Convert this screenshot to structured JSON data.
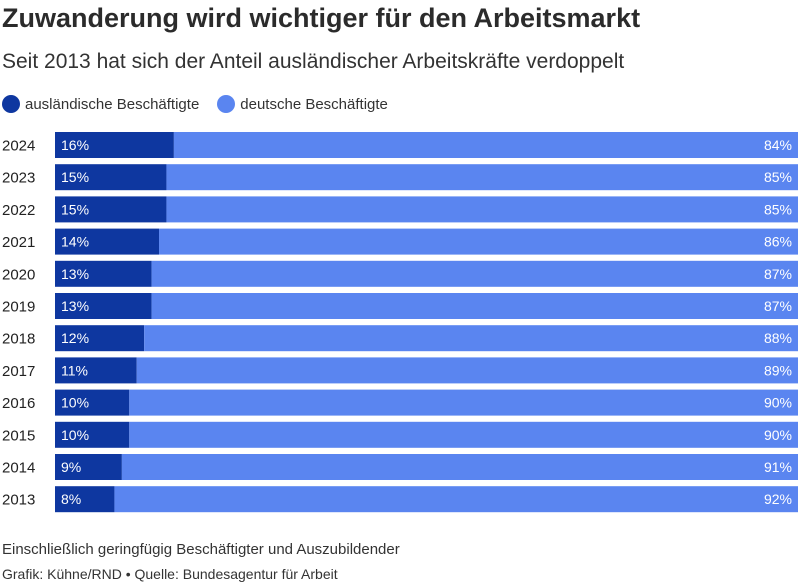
{
  "title": "Zuwanderung wird wichtiger für den Arbeitsmarkt",
  "subtitle": "Seit 2013 hat sich der Anteil ausländischer Arbeitskräfte verdoppelt",
  "footer": {
    "note": "Einschließlich geringfügig Beschäftigter und Auszubildender",
    "credit": "Grafik: Kühne/RND • Quelle: Bundesagentur für Arbeit"
  },
  "colors": {
    "foreign": "#0e37a0",
    "german": "#5a85f0"
  },
  "chart_data": {
    "type": "bar",
    "orientation": "horizontal",
    "stacked": true,
    "percent_stacked": true,
    "categories": [
      "2024",
      "2023",
      "2022",
      "2021",
      "2020",
      "2019",
      "2018",
      "2017",
      "2016",
      "2015",
      "2014",
      "2013"
    ],
    "series": [
      {
        "name": "ausländische Beschäftigte",
        "values": [
          16,
          15,
          15,
          14,
          13,
          13,
          12,
          11,
          10,
          10,
          9,
          8
        ],
        "labels": [
          "16%",
          "15%",
          "15%",
          "14%",
          "13%",
          "13%",
          "12%",
          "11%",
          "10%",
          "10%",
          "9%",
          "8%"
        ]
      },
      {
        "name": "deutsche Beschäftigte",
        "values": [
          84,
          85,
          85,
          86,
          87,
          87,
          88,
          89,
          90,
          90,
          91,
          92
        ],
        "labels": [
          "84%",
          "85%",
          "85%",
          "86%",
          "87%",
          "87%",
          "88%",
          "89%",
          "90%",
          "90%",
          "91%",
          "92%"
        ]
      }
    ],
    "xlim": [
      0,
      100
    ],
    "legend_position": "top-left",
    "grid": false
  }
}
